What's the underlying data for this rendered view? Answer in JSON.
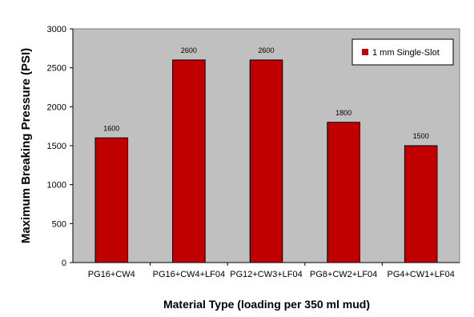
{
  "chart_data": {
    "type": "bar",
    "title": "",
    "xlabel": "Material Type (loading per 350 ml mud)",
    "ylabel": "Maximum Breaking Pressure (PSI)",
    "categories": [
      "PG16+CW4",
      "PG16+CW4+LF04",
      "PG12+CW3+LF04",
      "PG8+CW2+LF04",
      "PG4+CW1+LF04"
    ],
    "series": [
      {
        "name": "1 mm Single-Slot",
        "values": [
          1600,
          2600,
          2600,
          1800,
          1500
        ],
        "color": "#c00000"
      }
    ],
    "data_labels": [
      "1600",
      "2600",
      "2600",
      "1800",
      "1500"
    ],
    "ylim": [
      0,
      3000
    ],
    "yticks": [
      0,
      500,
      1000,
      1500,
      2000,
      2500,
      3000
    ],
    "plot_background": "#c0c0c0",
    "grid": false,
    "legend_position": "top-right"
  }
}
